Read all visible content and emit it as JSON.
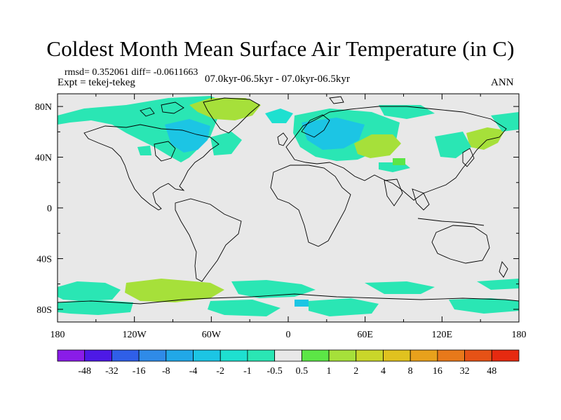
{
  "title": "Coldest Month Mean Surface Air Temperature (in C)",
  "stats_text": "rmsd= 0.352061 diff= -0.0611663",
  "experiment_text": "Expt = tekej-tekeg",
  "period_text": "07.0kyr-06.5kyr - 07.0kyr-06.5kyr",
  "season_text": "ANN",
  "map": {
    "lon_ticks": [
      "180",
      "120W",
      "60W",
      "0",
      "60E",
      "120E",
      "180"
    ],
    "lat_ticks": [
      "80N",
      "40N",
      "0",
      "40S",
      "80S"
    ],
    "background_color": "#e8e8e8",
    "coastline_color": "#000000"
  },
  "colorbar": {
    "labels": [
      "-48",
      "-32",
      "-16",
      "-8",
      "-4",
      "-2",
      "-1",
      "-0.5",
      "0.5",
      "1",
      "2",
      "4",
      "8",
      "16",
      "32",
      "48"
    ],
    "colors": [
      "#8a1ce8",
      "#4d19e6",
      "#2f5fe8",
      "#2f8be8",
      "#21a8e8",
      "#1cc5e4",
      "#1ee0d0",
      "#2ae6b4",
      "#e8e8e8",
      "#5ce646",
      "#a6e03a",
      "#c9d62a",
      "#e0c21f",
      "#e8a11c",
      "#e8791a",
      "#e65216",
      "#e62a10"
    ]
  }
}
